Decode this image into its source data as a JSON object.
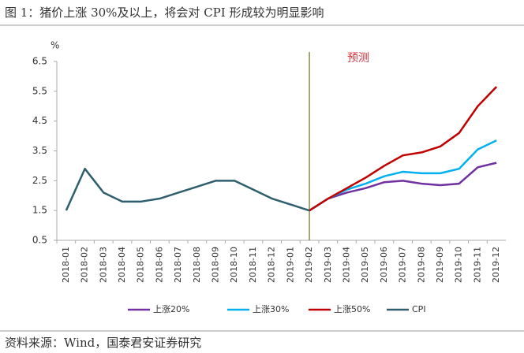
{
  "header": {
    "title": "图 1：猪价上涨 30%及以上，将会对 CPI 形成较为明显影响"
  },
  "chart_data": {
    "type": "line",
    "y_label": "%",
    "annotation": "预测",
    "categories": [
      "2018-01",
      "2018-02",
      "2018-03",
      "2018-04",
      "2018-05",
      "2018-06",
      "2018-07",
      "2018-08",
      "2018-09",
      "2018-10",
      "2018-11",
      "2018-12",
      "2019-01",
      "2019-02",
      "2019-03",
      "2019-04",
      "2019-05",
      "2019-06",
      "2019-07",
      "2019-08",
      "2019-09",
      "2019-10",
      "2019-11",
      "2019-12"
    ],
    "series": [
      {
        "name": "上涨20%",
        "color": "#7030a0",
        "values": [
          null,
          null,
          null,
          null,
          null,
          null,
          null,
          null,
          null,
          null,
          null,
          null,
          null,
          1.5,
          1.9,
          2.1,
          2.25,
          2.45,
          2.5,
          2.4,
          2.35,
          2.4,
          2.95,
          3.1
        ]
      },
      {
        "name": "上涨30%",
        "color": "#00b0f0",
        "values": [
          null,
          null,
          null,
          null,
          null,
          null,
          null,
          null,
          null,
          null,
          null,
          null,
          null,
          1.5,
          1.9,
          2.2,
          2.4,
          2.65,
          2.8,
          2.75,
          2.75,
          2.9,
          3.55,
          3.85
        ]
      },
      {
        "name": "上涨50%",
        "color": "#c00000",
        "values": [
          null,
          null,
          null,
          null,
          null,
          null,
          null,
          null,
          null,
          null,
          null,
          null,
          null,
          1.5,
          1.9,
          2.25,
          2.6,
          3.0,
          3.35,
          3.45,
          3.65,
          4.1,
          5.0,
          5.65
        ]
      },
      {
        "name": "CPI",
        "color": "#2e5f6e",
        "values": [
          1.5,
          2.9,
          2.1,
          1.8,
          1.8,
          1.9,
          2.1,
          2.3,
          2.5,
          2.5,
          2.2,
          1.9,
          1.7,
          1.5,
          null,
          null,
          null,
          null,
          null,
          null,
          null,
          null,
          null,
          null
        ]
      }
    ],
    "ylim": [
      0.5,
      6.5
    ],
    "yticks": [
      0.5,
      1.5,
      2.5,
      3.5,
      4.5,
      5.5,
      6.5
    ],
    "legend": "bottom"
  },
  "footer": {
    "source": "资料来源：Wind，国泰君安证券研究"
  }
}
